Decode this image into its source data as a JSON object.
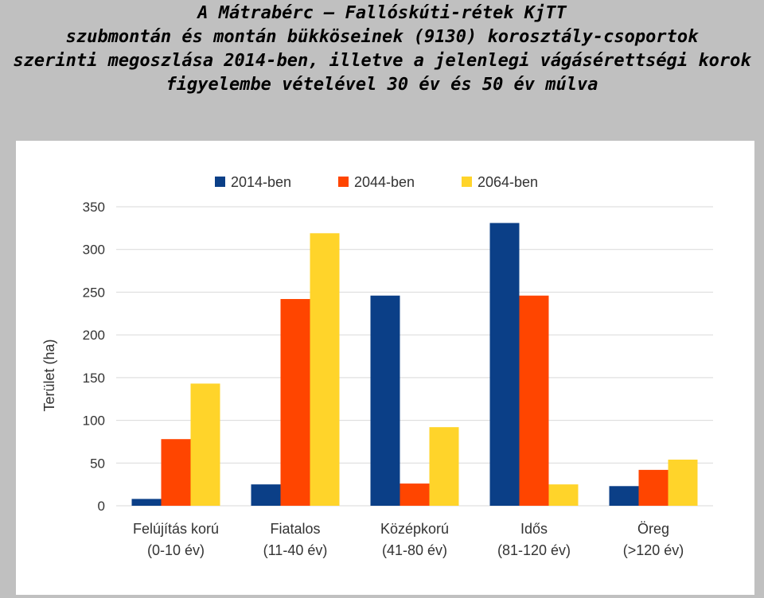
{
  "title_lines": [
    "A Mátrabérc – Fallóskúti-rétek KjTT",
    "szubmontán és montán bükköseinek (9130) korosztály-csoportok",
    "szerinti megoszlása 2014-ben, illetve a jelenlegi vágásérettségi korok",
    "figyelembe vételével 30 év és 50 év múlva"
  ],
  "chart_data": {
    "type": "bar",
    "categories": [
      [
        "Felújítás korú",
        "(0-10 év)"
      ],
      [
        "Fiatalos",
        "(11-40 év)"
      ],
      [
        "Középkorú",
        "(41-80 év)"
      ],
      [
        "Idős",
        "(81-120 év)"
      ],
      [
        "Öreg",
        "(>120 év)"
      ]
    ],
    "series": [
      {
        "name": "2014-ben",
        "color": "#0b3f87",
        "values": [
          8,
          25,
          246,
          331,
          23
        ]
      },
      {
        "name": "2044-ben",
        "color": "#ff4500",
        "values": [
          78,
          242,
          26,
          246,
          42
        ]
      },
      {
        "name": "2064-ben",
        "color": "#ffd42a",
        "values": [
          143,
          319,
          92,
          25,
          54
        ]
      }
    ],
    "ylabel": "Terület (ha)",
    "ylim": [
      0,
      350
    ],
    "yticks": [
      0,
      50,
      100,
      150,
      200,
      250,
      300,
      350
    ],
    "grid": true,
    "legend": "top"
  }
}
